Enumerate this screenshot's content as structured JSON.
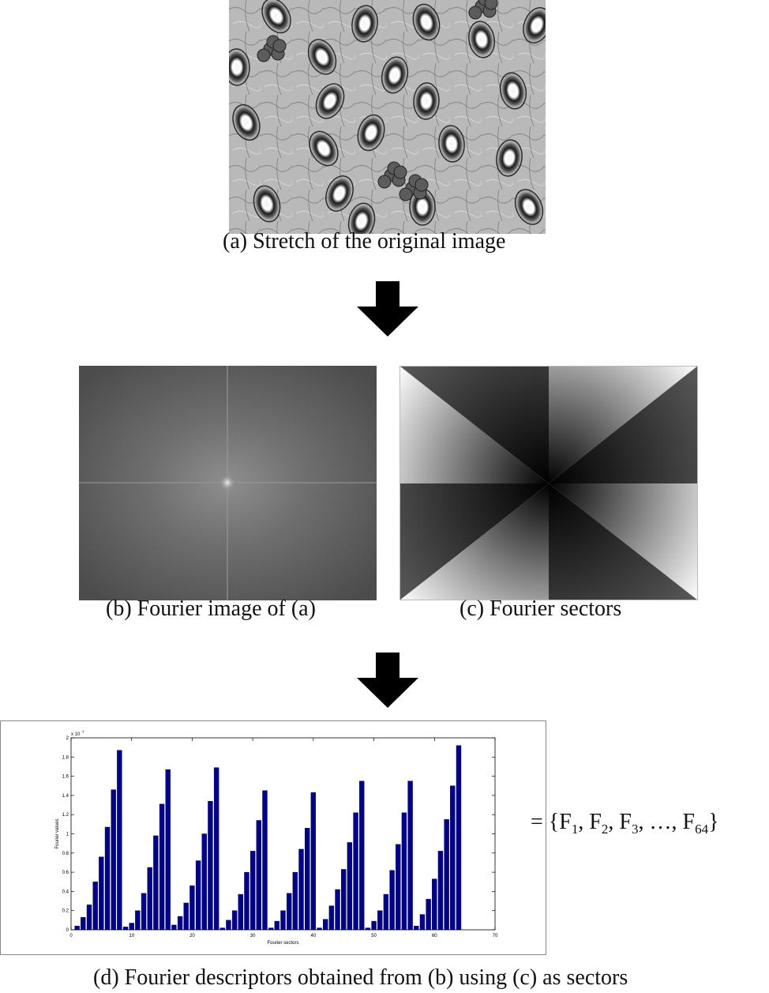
{
  "panels": {
    "a": {
      "caption": "(a) Stretch of the original image"
    },
    "b": {
      "caption": "(b) Fourier image of (a)"
    },
    "c": {
      "caption": "(c) Fourier sectors"
    },
    "d": {
      "caption": "(d) Fourier descriptors obtained from (b) using (c) as sectors"
    }
  },
  "formula": {
    "eq": "=",
    "open": "{",
    "f": "F",
    "sep": ", ",
    "ellipsis": "…",
    "close": "}",
    "subs": [
      "1",
      "2",
      "3",
      "64"
    ]
  },
  "chart_data": {
    "type": "bar",
    "xlabel": "Fourier sectors",
    "ylabel": "Fourier values",
    "y_multiplier": "x 10",
    "y_multiplier_exp": "7",
    "xlim": [
      0,
      70
    ],
    "ylim": [
      0,
      2
    ],
    "xticks": [
      0,
      10,
      20,
      30,
      40,
      50,
      60,
      70
    ],
    "yticks": [
      "0",
      "0.2",
      "0.4",
      "0.6",
      "0.8",
      "1",
      "1.2",
      "1.4",
      "1.6",
      "1.8",
      "2"
    ],
    "bar_color": "#00008b",
    "x": [
      1,
      2,
      3,
      4,
      5,
      6,
      7,
      8,
      9,
      10,
      11,
      12,
      13,
      14,
      15,
      16,
      17,
      18,
      19,
      20,
      21,
      22,
      23,
      24,
      25,
      26,
      27,
      28,
      29,
      30,
      31,
      32,
      33,
      34,
      35,
      36,
      37,
      38,
      39,
      40,
      41,
      42,
      43,
      44,
      45,
      46,
      47,
      48,
      49,
      50,
      51,
      52,
      53,
      54,
      55,
      56,
      57,
      58,
      59,
      60,
      61,
      62,
      63,
      64
    ],
    "values": [
      0.04,
      0.13,
      0.26,
      0.5,
      0.76,
      1.07,
      1.46,
      1.87,
      0.03,
      0.07,
      0.2,
      0.38,
      0.65,
      0.98,
      1.31,
      1.67,
      0.05,
      0.14,
      0.28,
      0.46,
      0.72,
      1.0,
      1.34,
      1.69,
      0.02,
      0.1,
      0.2,
      0.37,
      0.6,
      0.82,
      1.14,
      1.45,
      0.02,
      0.09,
      0.2,
      0.38,
      0.6,
      0.84,
      1.06,
      1.43,
      0.02,
      0.11,
      0.25,
      0.42,
      0.63,
      0.91,
      1.22,
      1.55,
      0.02,
      0.09,
      0.2,
      0.37,
      0.62,
      0.89,
      1.22,
      1.55,
      0.04,
      0.16,
      0.32,
      0.53,
      0.82,
      1.15,
      1.5,
      1.92
    ]
  }
}
